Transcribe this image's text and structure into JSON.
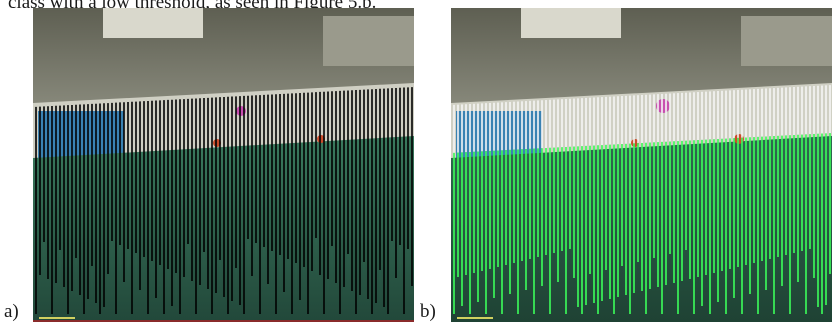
{
  "caption_fragment": "class with a low threshold, as seen in Figure 5.b.",
  "figure": {
    "panels": [
      {
        "label": "a)",
        "line_color": "#000000",
        "scene": "camera-frame-scan-lines"
      },
      {
        "label": "b)",
        "line_color_low": "#3cff5a",
        "line_color_high": "#f5f5f5",
        "scene": "camera-frame-classified-scan-lines"
      }
    ]
  },
  "colors": {
    "wall_top": "#6e6e5e",
    "wall_bottom": "#b7b7a4",
    "white_band": "#d6d6cc",
    "blue_box": "#3d86b8",
    "field": "#2f6c52",
    "field_dark": "#224a3a"
  }
}
